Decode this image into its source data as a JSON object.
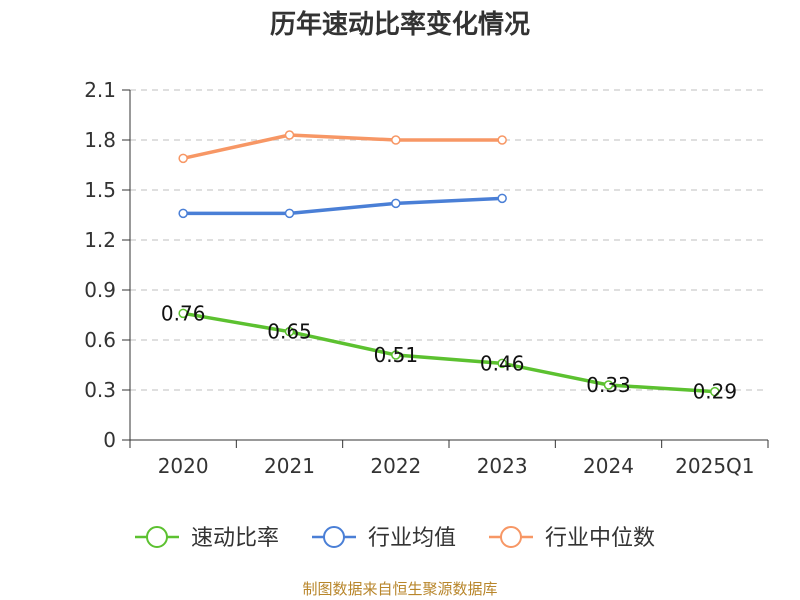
{
  "chart_data": {
    "type": "line",
    "title": "历年速动比率变化情况",
    "categories": [
      "2020",
      "2021",
      "2022",
      "2023",
      "2024",
      "2025Q1"
    ],
    "ylim": [
      0,
      2.1
    ],
    "yticks": [
      "0",
      "0.3",
      "0.6",
      "0.9",
      "1.2",
      "1.5",
      "1.8",
      "2.1"
    ],
    "grid": true,
    "legend_position": "bottom",
    "series": [
      {
        "name": "速动比率",
        "color": "#5cc130",
        "values": [
          0.76,
          0.65,
          0.51,
          0.46,
          0.33,
          0.29
        ],
        "labels": [
          "0.76",
          "0.65",
          "0.51",
          "0.46",
          "0.33",
          "0.29"
        ]
      },
      {
        "name": "行业均值",
        "color": "#4a7fd6",
        "values": [
          1.36,
          1.36,
          1.42,
          1.45,
          null,
          null
        ]
      },
      {
        "name": "行业中位数",
        "color": "#f79765",
        "values": [
          1.69,
          1.83,
          1.8,
          1.8,
          null,
          null
        ]
      }
    ]
  },
  "footer": {
    "source": "制图数据来自恒生聚源数据库"
  }
}
